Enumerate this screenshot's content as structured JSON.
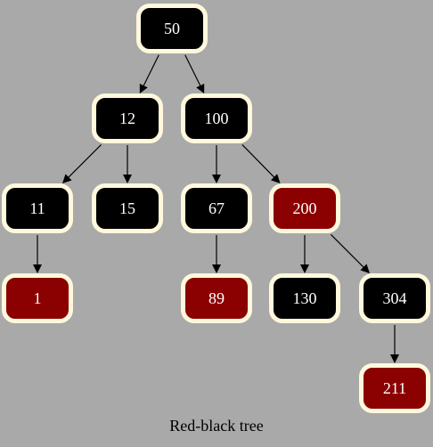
{
  "diagram": {
    "caption": "Red-black tree",
    "colors": {
      "background": "#a9a9a9",
      "black_node": "#000000",
      "red_node": "#8b0000",
      "node_border": "#fff8dc",
      "node_text": "#ffffff",
      "edge": "#000000"
    },
    "nodes": [
      {
        "id": "n50",
        "label": "50",
        "color": "black"
      },
      {
        "id": "n12",
        "label": "12",
        "color": "black"
      },
      {
        "id": "n100",
        "label": "100",
        "color": "black"
      },
      {
        "id": "n11",
        "label": "11",
        "color": "black"
      },
      {
        "id": "n15",
        "label": "15",
        "color": "black"
      },
      {
        "id": "n67",
        "label": "67",
        "color": "black"
      },
      {
        "id": "n200",
        "label": "200",
        "color": "red"
      },
      {
        "id": "n1",
        "label": "1",
        "color": "red"
      },
      {
        "id": "n89",
        "label": "89",
        "color": "red"
      },
      {
        "id": "n130",
        "label": "130",
        "color": "black"
      },
      {
        "id": "n304",
        "label": "304",
        "color": "black"
      },
      {
        "id": "n211",
        "label": "211",
        "color": "red"
      }
    ],
    "edges": [
      {
        "from": "n50",
        "to": "n12"
      },
      {
        "from": "n50",
        "to": "n100"
      },
      {
        "from": "n12",
        "to": "n11"
      },
      {
        "from": "n12",
        "to": "n15"
      },
      {
        "from": "n100",
        "to": "n67"
      },
      {
        "from": "n100",
        "to": "n200"
      },
      {
        "from": "n11",
        "to": "n1"
      },
      {
        "from": "n67",
        "to": "n89"
      },
      {
        "from": "n200",
        "to": "n130"
      },
      {
        "from": "n200",
        "to": "n304"
      },
      {
        "from": "n304",
        "to": "n211"
      }
    ]
  }
}
